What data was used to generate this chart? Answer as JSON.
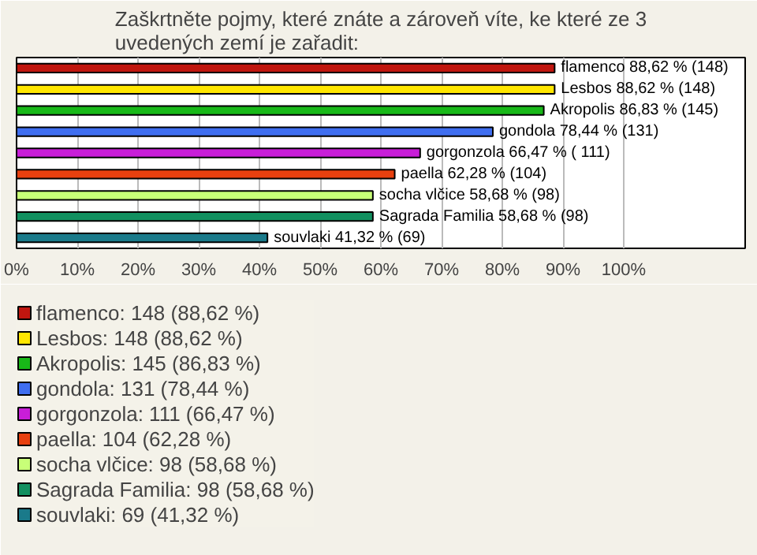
{
  "chart_data": {
    "type": "bar",
    "orientation": "horizontal",
    "title": "Zaškrtněte pojmy, které znáte a zároveň víte, ke které ze 3 uvedených zemí je zařadit:",
    "categories": [
      null,
      null,
      null,
      null,
      null,
      null,
      null,
      null,
      null
    ],
    "series": [
      {
        "name": "flamenco: 148 (88,62 %)",
        "color": "#c0160f",
        "values": [
          88.62,
          null,
          null,
          null,
          null,
          null,
          null,
          null,
          null
        ],
        "value_labels": [
          "flamenco 88,62 % (148)",
          null,
          null,
          null,
          null,
          null,
          null,
          null,
          null
        ]
      },
      {
        "name": "Lesbos: 148 (88,62 %)",
        "color": "#ffe600",
        "values": [
          null,
          88.62,
          null,
          null,
          null,
          null,
          null,
          null,
          null
        ],
        "value_labels": [
          null,
          "Lesbos 88,62 % (148)",
          null,
          null,
          null,
          null,
          null,
          null,
          null
        ]
      },
      {
        "name": "Akropolis: 145 (86,83 %)",
        "color": "#18b818",
        "values": [
          null,
          null,
          86.83,
          null,
          null,
          null,
          null,
          null,
          null
        ],
        "value_labels": [
          null,
          null,
          "Akropolis 86,83 % (145)",
          null,
          null,
          null,
          null,
          null,
          null
        ]
      },
      {
        "name": "gondola: 131 (78,44 %)",
        "color": "#3f6ef0",
        "values": [
          null,
          null,
          null,
          78.44,
          null,
          null,
          null,
          null,
          null
        ],
        "value_labels": [
          null,
          null,
          null,
          "gondola 78,44 % (131)",
          null,
          null,
          null,
          null,
          null
        ]
      },
      {
        "name": "gorgonzola: 111 (66,47 %)",
        "color": "#c81ed8",
        "values": [
          null,
          null,
          null,
          null,
          66.47,
          null,
          null,
          null,
          null
        ],
        "value_labels": [
          null,
          null,
          null,
          null,
          "gorgonzola 66,47 % ( 111)",
          null,
          null,
          null,
          null
        ]
      },
      {
        "name": "paella: 104 (62,28 %)",
        "color": "#e8400f",
        "values": [
          null,
          null,
          null,
          null,
          null,
          62.28,
          null,
          null,
          null
        ],
        "value_labels": [
          null,
          null,
          null,
          null,
          null,
          "paella 62,28 % (104)",
          null,
          null,
          null
        ]
      },
      {
        "name": "socha vlčice: 98 (58,68 %)",
        "color": "#c8ff78",
        "values": [
          null,
          null,
          null,
          null,
          null,
          null,
          58.68,
          null,
          null
        ],
        "value_labels": [
          null,
          null,
          null,
          null,
          null,
          null,
          "socha vlčice 58,68 % (98)",
          null,
          null
        ]
      },
      {
        "name": "Sagrada Familia: 98 (58,68 %)",
        "color": "#129060",
        "values": [
          null,
          null,
          null,
          null,
          null,
          null,
          null,
          58.68,
          null
        ],
        "value_labels": [
          null,
          null,
          null,
          null,
          null,
          null,
          null,
          "Sagrada Familia 58,68 % (98)",
          null
        ]
      },
      {
        "name": "souvlaki: 69 (41,32 %)",
        "color": "#1a7a8a",
        "values": [
          null,
          null,
          null,
          null,
          null,
          null,
          null,
          null,
          41.32
        ],
        "value_labels": [
          null,
          null,
          null,
          null,
          null,
          null,
          null,
          null,
          "souvlaki 41,32 % (69)"
        ]
      }
    ],
    "xlim": [
      0,
      120
    ],
    "xticks": [
      {
        "value": 0,
        "label": "0%"
      },
      {
        "value": 10,
        "label": "10%"
      },
      {
        "value": 20,
        "label": "20%"
      },
      {
        "value": 30,
        "label": "30%"
      },
      {
        "value": 40,
        "label": "40%"
      },
      {
        "value": 50,
        "label": "50%"
      },
      {
        "value": 60,
        "label": "60%"
      },
      {
        "value": 70,
        "label": "70%"
      },
      {
        "value": 80,
        "label": "80%"
      },
      {
        "value": 90,
        "label": "90%"
      },
      {
        "value": 100,
        "label": "100%"
      }
    ],
    "grid": "x",
    "legend": "bottom"
  }
}
